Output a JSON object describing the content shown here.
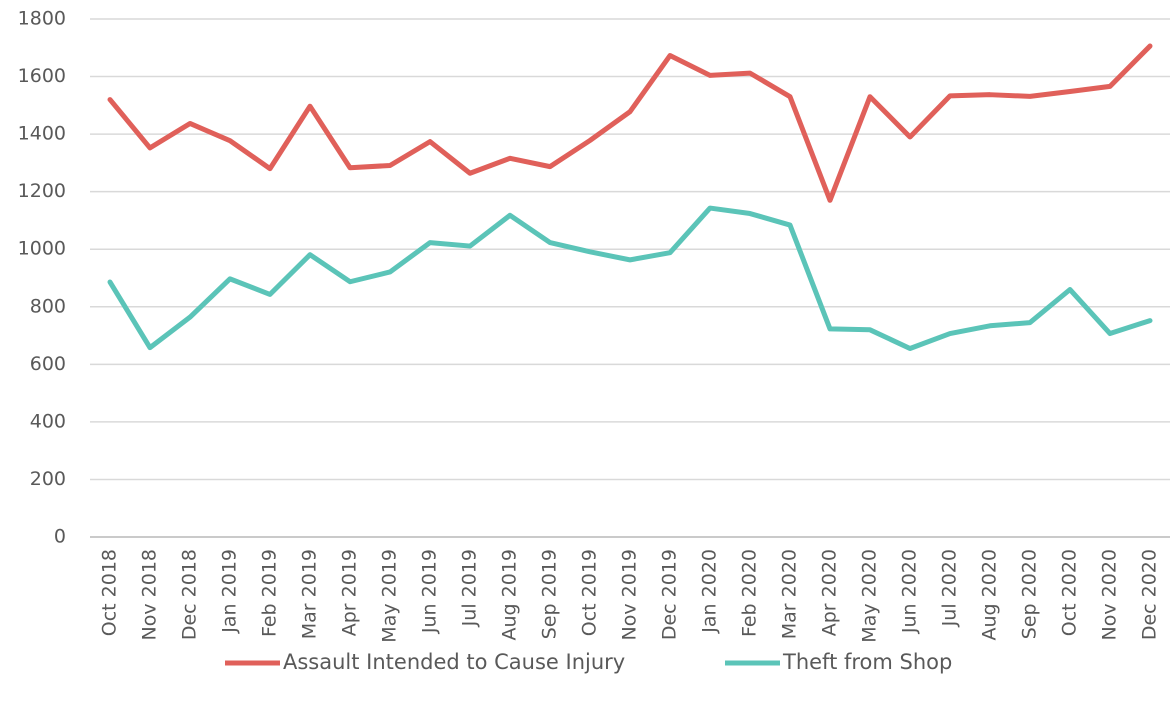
{
  "chart_data": {
    "type": "line",
    "categories": [
      "Oct 2018",
      "Nov 2018",
      "Dec 2018",
      "Jan 2019",
      "Feb 2019",
      "Mar 2019",
      "Apr 2019",
      "May 2019",
      "Jun 2019",
      "Jul 2019",
      "Aug 2019",
      "Sep 2019",
      "Oct 2019",
      "Nov 2019",
      "Dec 2019",
      "Jan 2020",
      "Feb 2020",
      "Mar 2020",
      "Apr 2020",
      "May 2020",
      "Jun 2020",
      "Jul 2020",
      "Aug 2020",
      "Sep 2020",
      "Oct 2020",
      "Nov 2020",
      "Dec 2020"
    ],
    "series": [
      {
        "name": "Assault Intended to Cause Injury",
        "color": "#e0605a",
        "values": [
          1520,
          1352,
          1437,
          1377,
          1280,
          1497,
          1283,
          1291,
          1374,
          1264,
          1316,
          1287,
          1378,
          1478,
          1673,
          1604,
          1612,
          1530,
          1170,
          1530,
          1390,
          1533,
          1537,
          1531,
          1548,
          1566,
          1706
        ]
      },
      {
        "name": "Theft from Shop",
        "color": "#5bc4b8",
        "values": [
          886,
          658,
          764,
          897,
          843,
          981,
          887,
          921,
          1023,
          1011,
          1118,
          1023,
          991,
          963,
          988,
          1143,
          1124,
          1084,
          723,
          720,
          655,
          707,
          734,
          745,
          860,
          707,
          752
        ]
      }
    ],
    "ylim": [
      0,
      1800
    ],
    "yticks": [
      0,
      200,
      400,
      600,
      800,
      1000,
      1200,
      1400,
      1600,
      1800
    ],
    "grid": true,
    "legend": "bottom"
  }
}
